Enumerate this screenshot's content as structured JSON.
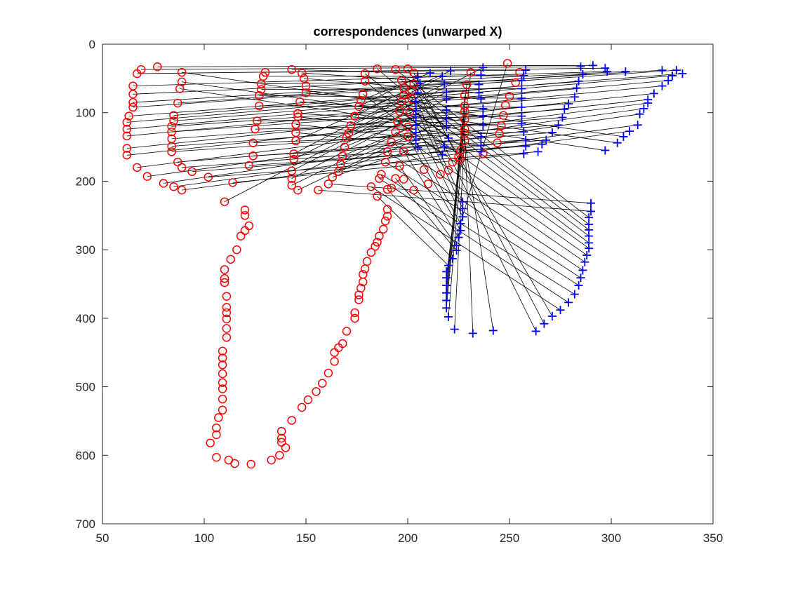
{
  "chart_data": {
    "type": "scatter",
    "title": "correspondences (unwarped X)",
    "xlabel": "",
    "ylabel": "",
    "xlim": [
      50,
      350
    ],
    "ylim": [
      0,
      700
    ],
    "y_reversed": true,
    "x_ticks": [
      50,
      100,
      150,
      200,
      250,
      300,
      350
    ],
    "y_ticks": [
      0,
      100,
      200,
      300,
      400,
      500,
      600,
      700
    ],
    "grid": false,
    "series": [
      {
        "marker": "circle",
        "color": "#ff0000",
        "points": [
          [
            77,
            33
          ],
          [
            69,
            37
          ],
          [
            67,
            43
          ],
          [
            65,
            61
          ],
          [
            65,
            73
          ],
          [
            65,
            85
          ],
          [
            65,
            92
          ],
          [
            63,
            105
          ],
          [
            62,
            114
          ],
          [
            62,
            124
          ],
          [
            62,
            134
          ],
          [
            62,
            152
          ],
          [
            62,
            162
          ],
          [
            67,
            180
          ],
          [
            72,
            193
          ],
          [
            80,
            203
          ],
          [
            85,
            208
          ],
          [
            89,
            213
          ],
          [
            89,
            41
          ],
          [
            89,
            55
          ],
          [
            88,
            65
          ],
          [
            87,
            86
          ],
          [
            85,
            104
          ],
          [
            85,
            112
          ],
          [
            84,
            120
          ],
          [
            84,
            128
          ],
          [
            84,
            138
          ],
          [
            84,
            149
          ],
          [
            84,
            157
          ],
          [
            87,
            172
          ],
          [
            89,
            180
          ],
          [
            94,
            186
          ],
          [
            102,
            194
          ],
          [
            130,
            41
          ],
          [
            129,
            47
          ],
          [
            128,
            58
          ],
          [
            128,
            66
          ],
          [
            127,
            75
          ],
          [
            127,
            90
          ],
          [
            126,
            112
          ],
          [
            125,
            124
          ],
          [
            124,
            144
          ],
          [
            124,
            163
          ],
          [
            122,
            177
          ],
          [
            114,
            202
          ],
          [
            110,
            230
          ],
          [
            143,
            37
          ],
          [
            148,
            42
          ],
          [
            149,
            50
          ],
          [
            150,
            61
          ],
          [
            150,
            71
          ],
          [
            147,
            84
          ],
          [
            146,
            101
          ],
          [
            146,
            106
          ],
          [
            145,
            117
          ],
          [
            145,
            129
          ],
          [
            145,
            141
          ],
          [
            144,
            160
          ],
          [
            144,
            168
          ],
          [
            143,
            185
          ],
          [
            143,
            196
          ],
          [
            143,
            206
          ],
          [
            146,
            213
          ],
          [
            185,
            36
          ],
          [
            179,
            43
          ],
          [
            179,
            54
          ],
          [
            178,
            73
          ],
          [
            177,
            82
          ],
          [
            176,
            91
          ],
          [
            174,
            105
          ],
          [
            172,
            119
          ],
          [
            171,
            130
          ],
          [
            170,
            136
          ],
          [
            169,
            150
          ],
          [
            168,
            163
          ],
          [
            167,
            175
          ],
          [
            166,
            186
          ],
          [
            163,
            194
          ],
          [
            161,
            204
          ],
          [
            156,
            213
          ],
          [
            194,
            37
          ],
          [
            197,
            53
          ],
          [
            198,
            64
          ],
          [
            198,
            74
          ],
          [
            197,
            84
          ],
          [
            196,
            98
          ],
          [
            195,
            113
          ],
          [
            194,
            128
          ],
          [
            192,
            143
          ],
          [
            190,
            157
          ],
          [
            189,
            172
          ],
          [
            187,
            190
          ],
          [
            186,
            196
          ],
          [
            182,
            208
          ],
          [
            200,
            36
          ],
          [
            203,
            42
          ],
          [
            203,
            58
          ],
          [
            202,
            68
          ],
          [
            202,
            80
          ],
          [
            201,
            99
          ],
          [
            200,
            121
          ],
          [
            200,
            135
          ],
          [
            198,
            156
          ],
          [
            196,
            178
          ],
          [
            194,
            196
          ],
          [
            190,
            212
          ],
          [
            185,
            222
          ],
          [
            249,
            28
          ],
          [
            231,
            41
          ],
          [
            229,
            59
          ],
          [
            228,
            75
          ],
          [
            228,
            90
          ],
          [
            228,
            98
          ],
          [
            228,
            110
          ],
          [
            228,
            124
          ],
          [
            228,
            130
          ],
          [
            228,
            141
          ],
          [
            226,
            155
          ],
          [
            225,
            164
          ],
          [
            222,
            172
          ],
          [
            220,
            184
          ],
          [
            216,
            190
          ],
          [
            210,
            204
          ],
          [
            203,
            213
          ],
          [
            255,
            41
          ],
          [
            253,
            56
          ],
          [
            250,
            76
          ],
          [
            248,
            89
          ],
          [
            247,
            104
          ],
          [
            246,
            119
          ],
          [
            245,
            131
          ],
          [
            244,
            144
          ],
          [
            237,
            160
          ],
          [
            226,
            168
          ],
          [
            208,
            183
          ],
          [
            198,
            197
          ],
          [
            192,
            210
          ],
          [
            120,
            242
          ],
          [
            120,
            250
          ],
          [
            122,
            265
          ],
          [
            120,
            272
          ],
          [
            118,
            280
          ],
          [
            116,
            300
          ],
          [
            113,
            314
          ],
          [
            110,
            329
          ],
          [
            110,
            342
          ],
          [
            110,
            348
          ],
          [
            111,
            368
          ],
          [
            111,
            384
          ],
          [
            111,
            392
          ],
          [
            111,
            401
          ],
          [
            111,
            415
          ],
          [
            111,
            428
          ],
          [
            109,
            448
          ],
          [
            109,
            458
          ],
          [
            109,
            468
          ],
          [
            109,
            481
          ],
          [
            109,
            494
          ],
          [
            109,
            503
          ],
          [
            109,
            518
          ],
          [
            109,
            534
          ],
          [
            107,
            545
          ],
          [
            106,
            560
          ],
          [
            106,
            570
          ],
          [
            103,
            582
          ],
          [
            106,
            603
          ],
          [
            112,
            607
          ],
          [
            115,
            612
          ],
          [
            123,
            613
          ],
          [
            190,
            241
          ],
          [
            190,
            251
          ],
          [
            189,
            258
          ],
          [
            188,
            270
          ],
          [
            186,
            280
          ],
          [
            185,
            289
          ],
          [
            184,
            295
          ],
          [
            182,
            304
          ],
          [
            180,
            317
          ],
          [
            179,
            328
          ],
          [
            178,
            336
          ],
          [
            178,
            347
          ],
          [
            177,
            356
          ],
          [
            176,
            366
          ],
          [
            176,
            373
          ],
          [
            174,
            392
          ],
          [
            174,
            400
          ],
          [
            170,
            419
          ],
          [
            168,
            437
          ],
          [
            166,
            443
          ],
          [
            164,
            450
          ],
          [
            164,
            463
          ],
          [
            161,
            480
          ],
          [
            158,
            495
          ],
          [
            155,
            507
          ],
          [
            151,
            519
          ],
          [
            148,
            530
          ],
          [
            143,
            549
          ],
          [
            138,
            565
          ],
          [
            138,
            575
          ],
          [
            138,
            581
          ],
          [
            140,
            589
          ],
          [
            137,
            600
          ],
          [
            133,
            607
          ]
        ]
      },
      {
        "marker": "plus",
        "color": "#0000ff",
        "points": [
          [
            291,
            31
          ],
          [
            285,
            33
          ],
          [
            297,
            35
          ],
          [
            298,
            40
          ],
          [
            307,
            40
          ],
          [
            325,
            38
          ],
          [
            332,
            38
          ],
          [
            335,
            43
          ],
          [
            330,
            46
          ],
          [
            328,
            53
          ],
          [
            325,
            61
          ],
          [
            321,
            72
          ],
          [
            318,
            81
          ],
          [
            318,
            86
          ],
          [
            316,
            94
          ],
          [
            314,
            102
          ],
          [
            313,
            118
          ],
          [
            309,
            127
          ],
          [
            306,
            135
          ],
          [
            303,
            144
          ],
          [
            297,
            155
          ],
          [
            286,
            44
          ],
          [
            284,
            54
          ],
          [
            283,
            64
          ],
          [
            282,
            77
          ],
          [
            279,
            87
          ],
          [
            277,
            95
          ],
          [
            276,
            107
          ],
          [
            274,
            118
          ],
          [
            271,
            129
          ],
          [
            268,
            140
          ],
          [
            266,
            146
          ],
          [
            264,
            157
          ],
          [
            258,
            38
          ],
          [
            257,
            46
          ],
          [
            256,
            53
          ],
          [
            256,
            65
          ],
          [
            256,
            79
          ],
          [
            256,
            92
          ],
          [
            256,
            105
          ],
          [
            256,
            116
          ],
          [
            257,
            128
          ],
          [
            258,
            140
          ],
          [
            258,
            149
          ],
          [
            257,
            160
          ],
          [
            237,
            34
          ],
          [
            236,
            45
          ],
          [
            235,
            59
          ],
          [
            235,
            71
          ],
          [
            236,
            80
          ],
          [
            237,
            94
          ],
          [
            237,
            105
          ],
          [
            237,
            119
          ],
          [
            236,
            135
          ],
          [
            236,
            148
          ],
          [
            236,
            157
          ],
          [
            221,
            39
          ],
          [
            217,
            47
          ],
          [
            218,
            58
          ],
          [
            219,
            70
          ],
          [
            219,
            80
          ],
          [
            219,
            96
          ],
          [
            219,
            109
          ],
          [
            219,
            121
          ],
          [
            220,
            137
          ],
          [
            218,
            149
          ],
          [
            217,
            161
          ],
          [
            211,
            42
          ],
          [
            205,
            48
          ],
          [
            206,
            57
          ],
          [
            205,
            71
          ],
          [
            204,
            84
          ],
          [
            204,
            97
          ],
          [
            204,
            106
          ],
          [
            204,
            118
          ],
          [
            204,
            129
          ],
          [
            204,
            140
          ],
          [
            205,
            151
          ],
          [
            290,
            232
          ],
          [
            290,
            244
          ],
          [
            289,
            253
          ],
          [
            289,
            263
          ],
          [
            289,
            271
          ],
          [
            289,
            280
          ],
          [
            289,
            290
          ],
          [
            289,
            298
          ],
          [
            288,
            308
          ],
          [
            287,
            318
          ],
          [
            286,
            330
          ],
          [
            285,
            341
          ],
          [
            284,
            352
          ],
          [
            282,
            365
          ],
          [
            279,
            377
          ],
          [
            275,
            388
          ],
          [
            271,
            397
          ],
          [
            267,
            408
          ],
          [
            263,
            419
          ],
          [
            227,
            230
          ],
          [
            227,
            240
          ],
          [
            227,
            252
          ],
          [
            226,
            262
          ],
          [
            226,
            272
          ],
          [
            225,
            282
          ],
          [
            224,
            294
          ],
          [
            224,
            301
          ],
          [
            222,
            313
          ],
          [
            220,
            323
          ],
          [
            219,
            332
          ],
          [
            219,
            341
          ],
          [
            219,
            352
          ],
          [
            219,
            363
          ],
          [
            219,
            374
          ],
          [
            219,
            385
          ],
          [
            220,
            398
          ],
          [
            223,
            416
          ],
          [
            232,
            422
          ],
          [
            242,
            418
          ]
        ]
      }
    ]
  }
}
